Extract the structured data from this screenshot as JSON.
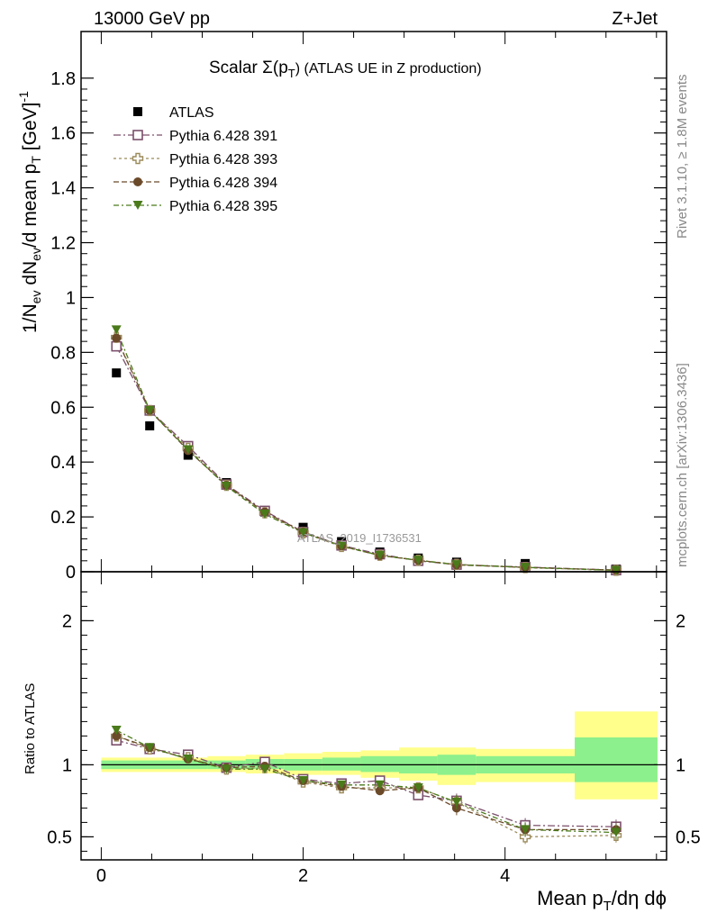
{
  "header": {
    "energy": "13000 GeV pp",
    "process": "Z+Jet"
  },
  "side_labels": {
    "rivet": "Rivet 3.1.10, ≥ 1.8M events",
    "mcplots": "mcplots.cern.ch [arXiv:1306.3436]"
  },
  "watermark": "ATLAS_2019_I1736531",
  "chart_data": [
    {
      "panel": "main",
      "type": "scatter",
      "title_main": "Scalar Σ(p",
      "title_sub": "T",
      "title_rest": ") (ATLAS UE in Z production)",
      "ylabel": "1/N_ev dN_ev/d mean p_T [GeV]^-1",
      "xlim": [
        -0.2,
        5.6
      ],
      "ylim": [
        0,
        1.97
      ],
      "y_ticks": [
        0,
        0.2,
        0.4,
        0.6,
        0.8,
        1,
        1.2,
        1.4,
        1.6,
        1.8
      ],
      "y_tick_labels": [
        "0",
        "0.2",
        "0.4",
        "0.6",
        "0.8",
        "1",
        "1.2",
        "1.4",
        "1.6",
        "1.8"
      ],
      "legend_position": "top-left",
      "x": [
        0.15,
        0.48,
        0.86,
        1.24,
        1.62,
        2.0,
        2.38,
        2.76,
        3.14,
        3.52,
        4.2,
        5.1
      ],
      "series": [
        {
          "name": "ATLAS",
          "marker": "square-filled",
          "color": "#000000",
          "values": [
            0.725,
            0.532,
            0.425,
            0.325,
            0.218,
            0.162,
            0.11,
            0.072,
            0.05,
            0.035,
            0.03,
            0.01
          ]
        },
        {
          "name": "Pythia 6.428 391",
          "marker": "square-open",
          "color": "#7b4f6b",
          "dash": "8,3,2,3",
          "values": [
            0.822,
            0.588,
            0.458,
            0.318,
            0.222,
            0.145,
            0.096,
            0.064,
            0.04,
            0.026,
            0.017,
            0.006
          ]
        },
        {
          "name": "Pythia 6.428 393",
          "marker": "cross-open",
          "color": "#9b8a5a",
          "dash": "3,3",
          "values": [
            0.855,
            0.588,
            0.45,
            0.315,
            0.215,
            0.142,
            0.092,
            0.06,
            0.042,
            0.027,
            0.015,
            0.005
          ]
        },
        {
          "name": "Pythia 6.428 394",
          "marker": "circle-filled",
          "color": "#6b4a2a",
          "dash": "6,3",
          "values": [
            0.852,
            0.588,
            0.442,
            0.315,
            0.218,
            0.145,
            0.094,
            0.059,
            0.042,
            0.025,
            0.016,
            0.006
          ]
        },
        {
          "name": "Pythia 6.428 395",
          "marker": "triangle-down-filled",
          "color": "#4a7a1a",
          "dash": "6,3,2,3",
          "values": [
            0.882,
            0.588,
            0.445,
            0.312,
            0.21,
            0.142,
            0.094,
            0.06,
            0.042,
            0.026,
            0.016,
            0.005
          ]
        }
      ]
    },
    {
      "panel": "ratio",
      "type": "scatter",
      "ylabel": "Ratio to ATLAS",
      "xlabel_main": "Mean p",
      "xlabel_sub": "T",
      "xlabel_rest": "/dη dϕ",
      "xlim": [
        -0.2,
        5.6
      ],
      "ylim": [
        0.34,
        2.34
      ],
      "x_ticks": [
        0,
        2,
        4
      ],
      "x_tick_labels": [
        "0",
        "2",
        "4"
      ],
      "y_ticks": [
        0.5,
        1,
        2
      ],
      "y_tick_labels": [
        "0.5",
        "1",
        "2"
      ],
      "reference_line": 1,
      "bands": [
        {
          "x0": 0.0,
          "x1": 0.3,
          "yellow": [
            0.95,
            1.05
          ],
          "green": [
            0.97,
            1.03
          ]
        },
        {
          "x0": 0.3,
          "x1": 0.67,
          "yellow": [
            0.95,
            1.05
          ],
          "green": [
            0.97,
            1.03
          ]
        },
        {
          "x0": 0.67,
          "x1": 1.05,
          "yellow": [
            0.95,
            1.05
          ],
          "green": [
            0.97,
            1.03
          ]
        },
        {
          "x0": 1.05,
          "x1": 1.43,
          "yellow": [
            0.95,
            1.06
          ],
          "green": [
            0.97,
            1.03
          ]
        },
        {
          "x0": 1.43,
          "x1": 1.81,
          "yellow": [
            0.94,
            1.07
          ],
          "green": [
            0.97,
            1.04
          ]
        },
        {
          "x0": 1.81,
          "x1": 2.19,
          "yellow": [
            0.93,
            1.08
          ],
          "green": [
            0.96,
            1.04
          ]
        },
        {
          "x0": 2.19,
          "x1": 2.57,
          "yellow": [
            0.93,
            1.09
          ],
          "green": [
            0.96,
            1.05
          ]
        },
        {
          "x0": 2.57,
          "x1": 2.95,
          "yellow": [
            0.91,
            1.1
          ],
          "green": [
            0.95,
            1.06
          ]
        },
        {
          "x0": 2.95,
          "x1": 3.33,
          "yellow": [
            0.89,
            1.12
          ],
          "green": [
            0.94,
            1.06
          ]
        },
        {
          "x0": 3.33,
          "x1": 3.71,
          "yellow": [
            0.86,
            1.12
          ],
          "green": [
            0.93,
            1.07
          ]
        },
        {
          "x0": 3.71,
          "x1": 4.69,
          "yellow": [
            0.88,
            1.11
          ],
          "green": [
            0.94,
            1.06
          ]
        },
        {
          "x0": 4.69,
          "x1": 5.51,
          "yellow": [
            0.76,
            1.37
          ],
          "green": [
            0.88,
            1.19
          ]
        }
      ],
      "x": [
        0.15,
        0.48,
        0.86,
        1.24,
        1.62,
        2.0,
        2.38,
        2.76,
        3.14,
        3.52,
        4.2,
        5.1
      ],
      "series": [
        {
          "name": "Pythia 6.428 391",
          "marker": "square-open",
          "color": "#7b4f6b",
          "dash": "8,3,2,3",
          "values": [
            1.17,
            1.11,
            1.07,
            0.98,
            1.02,
            0.9,
            0.87,
            0.89,
            0.79,
            0.75,
            0.58,
            0.57
          ]
        },
        {
          "name": "Pythia 6.428 393",
          "marker": "cross-open",
          "color": "#9b8a5a",
          "dash": "3,3",
          "values": [
            1.2,
            1.11,
            1.05,
            0.97,
            0.98,
            0.88,
            0.84,
            0.84,
            0.84,
            0.74,
            0.5,
            0.51
          ]
        },
        {
          "name": "Pythia 6.428 394",
          "marker": "circle-filled",
          "color": "#6b4a2a",
          "dash": "6,3",
          "values": [
            1.2,
            1.12,
            1.04,
            0.98,
            0.99,
            0.89,
            0.85,
            0.82,
            0.84,
            0.7,
            0.55,
            0.55
          ]
        },
        {
          "name": "Pythia 6.428 395",
          "marker": "triangle-down-filled",
          "color": "#4a7a1a",
          "dash": "6,3,2,3",
          "values": [
            1.24,
            1.12,
            1.04,
            0.97,
            0.97,
            0.89,
            0.86,
            0.86,
            0.84,
            0.74,
            0.55,
            0.53
          ]
        }
      ]
    }
  ]
}
